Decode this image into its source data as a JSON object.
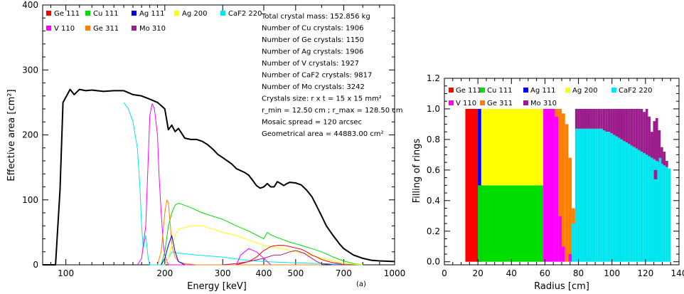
{
  "chart_data": [
    {
      "type": "line",
      "xlabel": "Energy [keV]",
      "ylabel": "Effective area [cm²]",
      "xscale": "log",
      "xlim": [
        85,
        1000
      ],
      "ylim": [
        0,
        400
      ],
      "x_ticks": [
        100,
        200,
        300,
        400,
        500,
        700,
        1000
      ],
      "y_ticks": [
        0,
        100,
        200,
        300,
        400
      ],
      "legend": [
        {
          "name": "Ge 111",
          "color": "#ff0000"
        },
        {
          "name": "Cu 111",
          "color": "#00dd00"
        },
        {
          "name": "Ag 111",
          "color": "#0000ee"
        },
        {
          "name": "Ag 200",
          "color": "#ffff00"
        },
        {
          "name": "CaF2 220",
          "color": "#00e5ee"
        },
        {
          "name": "V 110",
          "color": "#ff00ff"
        },
        {
          "name": "Ge 311",
          "color": "#ff8000"
        },
        {
          "name": "Mo 310",
          "color": "#9c1c8c"
        }
      ],
      "legend_placement": "top-left",
      "info_lines": [
        "Total crystal mass: 152.856 kg",
        "Number of Cu crystals: 1906",
        "Number of Ge crystals: 1150",
        "Number of Ag crystals: 1906",
        "Number of V crystals: 1927",
        "Number of CaF2 crystals: 9817",
        "Number of Mo crystals: 3242",
        "Crystals size: r x t = 15 x 15 mm²",
        "r_min = 12.50 cm ; r_max = 128.50 cm",
        "Mosaic spread = 120 arcsec",
        "Geometrical area = 44883.00 cm²"
      ],
      "footnote": "(a)",
      "series": [
        {
          "name": "Total",
          "color": "#000000",
          "x": [
            85,
            93,
            96,
            98,
            100,
            103,
            106,
            110,
            115,
            120,
            130,
            140,
            150,
            160,
            170,
            180,
            190,
            195,
            200,
            205,
            210,
            215,
            220,
            230,
            240,
            250,
            260,
            270,
            280,
            290,
            300,
            310,
            320,
            330,
            340,
            350,
            360,
            370,
            380,
            390,
            400,
            410,
            420,
            430,
            440,
            450,
            460,
            470,
            480,
            500,
            520,
            540,
            560,
            580,
            600,
            620,
            650,
            680,
            700,
            750,
            800,
            850,
            900,
            1000
          ],
          "y": [
            0,
            0,
            115,
            250,
            258,
            270,
            262,
            270,
            268,
            269,
            267,
            268,
            268,
            262,
            260,
            255,
            250,
            245,
            240,
            208,
            215,
            205,
            210,
            195,
            193,
            193,
            190,
            185,
            178,
            170,
            165,
            160,
            155,
            148,
            145,
            142,
            138,
            130,
            122,
            118,
            120,
            125,
            120,
            120,
            128,
            125,
            122,
            125,
            127,
            126,
            123,
            115,
            105,
            90,
            75,
            60,
            45,
            32,
            25,
            15,
            10,
            7,
            6,
            5
          ]
        },
        {
          "name": "CaF2 220",
          "color": "#00e5ee",
          "x": [
            150,
            155,
            160,
            165,
            168,
            170,
            172,
            175,
            178,
            180,
            200,
            210,
            220,
            250,
            300,
            320,
            340,
            400,
            500,
            600,
            700,
            800
          ],
          "y": [
            250,
            240,
            220,
            180,
            120,
            60,
            25,
            45,
            10,
            0,
            0,
            20,
            18,
            15,
            12,
            10,
            8,
            5,
            3,
            2,
            1,
            0
          ]
        },
        {
          "name": "V 110",
          "color": "#ff00ff",
          "x": [
            165,
            170,
            175,
            180,
            183,
            186,
            190,
            192,
            195,
            198,
            200,
            203,
            205,
            210,
            230,
            260,
            300,
            330,
            340,
            360,
            380,
            400,
            420
          ],
          "y": [
            0,
            10,
            60,
            230,
            248,
            240,
            200,
            140,
            80,
            30,
            15,
            5,
            0,
            0,
            0,
            0,
            0,
            0,
            15,
            25,
            20,
            10,
            0
          ]
        },
        {
          "name": "Ge 311",
          "color": "#ff8000",
          "x": [
            190,
            195,
            200,
            203,
            205,
            208,
            210,
            215,
            220,
            230,
            250,
            300,
            350,
            380,
            400,
            450,
            500,
            550,
            600
          ],
          "y": [
            0,
            20,
            80,
            100,
            95,
            60,
            30,
            12,
            5,
            2,
            0,
            0,
            0,
            0,
            0,
            0,
            0,
            0,
            0
          ]
        },
        {
          "name": "Cu 111",
          "color": "#00dd00",
          "x": [
            195,
            200,
            205,
            210,
            215,
            220,
            240,
            260,
            300,
            330,
            360,
            400,
            410,
            420,
            440,
            480,
            520,
            560,
            600,
            650,
            700,
            750,
            800
          ],
          "y": [
            0,
            20,
            60,
            80,
            92,
            95,
            88,
            80,
            70,
            60,
            52,
            40,
            50,
            46,
            42,
            35,
            30,
            25,
            20,
            12,
            6,
            2,
            0
          ]
        },
        {
          "name": "Ag 200",
          "color": "#ffff00",
          "x": [
            200,
            205,
            210,
            215,
            220,
            240,
            260,
            280,
            300,
            330,
            360,
            400,
            450,
            500,
            550,
            600,
            650,
            700,
            750,
            800
          ],
          "y": [
            0,
            10,
            30,
            45,
            55,
            60,
            60,
            55,
            50,
            45,
            38,
            30,
            25,
            20,
            15,
            10,
            6,
            3,
            1,
            0
          ]
        },
        {
          "name": "Ag 111",
          "color": "#0000ee",
          "x": [
            195,
            200,
            205,
            210,
            215,
            220,
            230
          ],
          "y": [
            0,
            10,
            30,
            45,
            20,
            5,
            0
          ]
        },
        {
          "name": "Mo 310",
          "color": "#9c1c8c",
          "x": [
            300,
            330,
            360,
            400,
            430,
            450,
            480,
            500,
            530,
            560,
            580,
            600,
            650,
            700
          ],
          "y": [
            0,
            2,
            5,
            10,
            15,
            15,
            20,
            22,
            18,
            10,
            5,
            2,
            0,
            0
          ]
        },
        {
          "name": "Ge 111",
          "color": "#ff0000",
          "x": [
            330,
            360,
            380,
            400,
            420,
            440,
            460,
            480,
            500,
            520,
            540,
            560,
            580,
            600,
            640,
            680,
            700,
            750
          ],
          "y": [
            0,
            5,
            12,
            22,
            28,
            30,
            30,
            28,
            26,
            24,
            20,
            15,
            12,
            8,
            4,
            2,
            0,
            0
          ]
        }
      ]
    },
    {
      "type": "bar",
      "xlabel": "Radius [cm]",
      "ylabel": "Filling of rings",
      "xlim": [
        0,
        140
      ],
      "ylim": [
        -0.02,
        1.2
      ],
      "x_ticks": [
        0,
        20,
        40,
        60,
        80,
        100,
        120,
        140
      ],
      "y_ticks": [
        0.0,
        0.2,
        0.4,
        0.6,
        0.8,
        1.0,
        1.2
      ],
      "legend": [
        {
          "name": "Ge 111",
          "color": "#ff0000"
        },
        {
          "name": "Cu 111",
          "color": "#00dd00"
        },
        {
          "name": "Ag 111",
          "color": "#0000ee"
        },
        {
          "name": "Ag 200",
          "color": "#ffff00"
        },
        {
          "name": "CaF2 220",
          "color": "#00e5ee"
        },
        {
          "name": "V 110",
          "color": "#ff00ff"
        },
        {
          "name": "Ge 311",
          "color": "#ff8000"
        },
        {
          "name": "Mo 310",
          "color": "#9c1c8c"
        }
      ],
      "legend_placement": "top-left",
      "segments": [
        {
          "material": "Ge 111",
          "color": "#ff0000",
          "x0": 12.5,
          "x1": 20,
          "y0": 0,
          "y1": 1.0
        },
        {
          "material": "Ag 111",
          "color": "#0000ee",
          "x0": 20,
          "x1": 22,
          "y0": 0,
          "y1": 1.0
        },
        {
          "material": "Cu 111",
          "color": "#00dd00",
          "x0": 20,
          "x1": 22,
          "y0": 0,
          "y1": 0.5
        },
        {
          "material": "Cu 111",
          "color": "#00dd00",
          "x0": 22,
          "x1": 59,
          "y0": 0,
          "y1": 0.5
        },
        {
          "material": "Ag 200",
          "color": "#ffff00",
          "x0": 22,
          "x1": 59,
          "y0": 0.5,
          "y1": 1.0
        },
        {
          "material": "V 110",
          "color": "#ff00ff",
          "x0": 59,
          "x1": 66,
          "y0": 0,
          "y1": 1.0
        },
        {
          "material": "V 110",
          "color": "#ff00ff",
          "x0": 66,
          "x1": 68,
          "y0": 0,
          "y1": 0.95
        },
        {
          "material": "Ge 311",
          "color": "#ff8000",
          "x0": 66,
          "x1": 68,
          "y0": 0.95,
          "y1": 1.0
        },
        {
          "material": "V 110",
          "color": "#ff00ff",
          "x0": 68,
          "x1": 70,
          "y0": 0,
          "y1": 0.3
        },
        {
          "material": "Ge 311",
          "color": "#ff8000",
          "x0": 68,
          "x1": 70,
          "y0": 0.3,
          "y1": 1.0
        },
        {
          "material": "V 110",
          "color": "#ff00ff",
          "x0": 70,
          "x1": 72,
          "y0": 0,
          "y1": 0.1
        },
        {
          "material": "Ge 311",
          "color": "#ff8000",
          "x0": 70,
          "x1": 72,
          "y0": 0.1,
          "y1": 0.97
        },
        {
          "material": "Ge 311",
          "color": "#ff8000",
          "x0": 72,
          "x1": 74,
          "y0": 0,
          "y1": 0.9
        },
        {
          "material": "V 110",
          "color": "#ff00ff",
          "x0": 74,
          "x1": 76,
          "y0": 0,
          "y1": 0.05
        },
        {
          "material": "Ge 311",
          "color": "#ff8000",
          "x0": 74,
          "x1": 76,
          "y0": 0.05,
          "y1": 0.68
        },
        {
          "material": "CaF2 220",
          "color": "#00e5ee",
          "x0": 76,
          "x1": 78,
          "y0": 0,
          "y1": 0.25
        },
        {
          "material": "Ge 311",
          "color": "#ff8000",
          "x0": 76,
          "x1": 78,
          "y0": 0.25,
          "y1": 0.35
        }
      ],
      "ring_bars": {
        "x_start": 78,
        "width": 1.5,
        "caf2_heights": [
          0.87,
          0.87,
          0.87,
          0.87,
          0.87,
          0.87,
          0.87,
          0.87,
          0.87,
          0.87,
          0.87,
          0.86,
          0.85,
          0.85,
          0.84,
          0.83,
          0.82,
          0.81,
          0.8,
          0.79,
          0.78,
          0.77,
          0.76,
          0.75,
          0.74,
          0.73,
          0.72,
          0.71,
          0.7,
          0.69,
          0.68,
          0.67,
          0.66,
          0.65,
          0.64,
          0.63,
          0.62,
          0.61
        ],
        "mo_tops": [
          1.0,
          1.0,
          1.0,
          1.0,
          1.0,
          1.0,
          1.0,
          1.0,
          1.0,
          1.0,
          1.0,
          1.0,
          1.0,
          1.0,
          1.0,
          1.0,
          1.0,
          1.0,
          1.0,
          1.0,
          1.0,
          1.0,
          1.0,
          1.0,
          1.0,
          1.0,
          1.0,
          0.98,
          1.0,
          0.95,
          0.85,
          0.92,
          0.94,
          0.86,
          0.75,
          0.72,
          0.66,
          0.6
        ],
        "tail": [
          {
            "material": "CaF2 220",
            "color": "#00e5ee",
            "x0": 125,
            "x1": 127,
            "y0": 0,
            "y1": 0.62
          },
          {
            "material": "Mo 310",
            "color": "#9c1c8c",
            "x0": 125,
            "x1": 127,
            "y0": 0.54,
            "y1": 0.6
          },
          {
            "material": "CaF2 220",
            "color": "#00e5ee",
            "x0": 128,
            "x1": 129.5,
            "y0": 0,
            "y1": 0.68
          }
        ]
      }
    }
  ]
}
